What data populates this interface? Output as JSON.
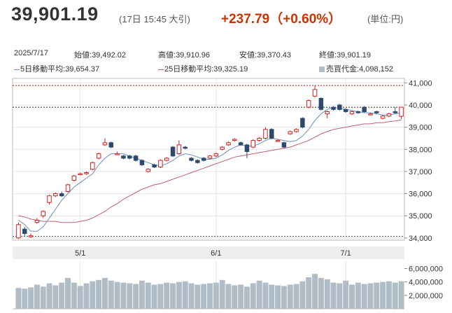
{
  "header": {
    "price": "39,901.19",
    "timestamp": "(17日 15:45 大引)",
    "change": "+237.79（+0.60%）",
    "unit": "(単位:円)"
  },
  "info": {
    "date": "2025/7/17",
    "open_label": "始値:",
    "open": "39,492.02",
    "high_label": "高値:",
    "high": "39,910.96",
    "low_label": "安値:",
    "low": "39,370.43",
    "close_label": "終値:",
    "close": "39,901.19",
    "ma5_label": "5日移動平均:",
    "ma5": "39,654.37",
    "ma25_label": "25日移動平均:",
    "ma25": "39,325.19",
    "volume_label": "売買代金:",
    "volume": "4,098,152"
  },
  "colors": {
    "up": "#cc2222",
    "down": "#2d4a6e",
    "ma5": "#6a8fc0",
    "ma25": "#c06070",
    "volume": "#b0bcc6",
    "dotted_high": "#9a2020",
    "dotted_low": "#3a4a6a"
  },
  "chart_data": {
    "type": "candlestick",
    "price_ticks": [
      "41,000",
      "40,000",
      "39,000",
      "38,000",
      "37,000",
      "36,000",
      "35,000",
      "34,000"
    ],
    "price_tick_values": [
      41000,
      40000,
      39000,
      38000,
      37000,
      36000,
      35000,
      34000
    ],
    "ylim": [
      33900,
      41200
    ],
    "x_labels": [
      "5/1",
      "6/1",
      "7/1"
    ],
    "x_label_positions": [
      10,
      32,
      53
    ],
    "current_price": 39901.19,
    "period_high_line": 40880,
    "period_low_line": 34070,
    "volume_ticks": [
      "6,000,000",
      "4,000,000",
      "2,000,000"
    ],
    "volume_tick_values": [
      6000000,
      4000000,
      2000000
    ],
    "candles": [
      [
        34000,
        34600,
        33950,
        34700
      ],
      [
        34400,
        34200,
        34100,
        34500
      ],
      [
        34080,
        34100,
        34000,
        34200
      ],
      [
        34700,
        34800,
        34650,
        34900
      ],
      [
        35000,
        35200,
        34900,
        35250
      ],
      [
        35600,
        35900,
        35500,
        35950
      ],
      [
        35900,
        36000,
        35850,
        36050
      ],
      [
        36000,
        35900,
        35850,
        36100
      ],
      [
        36100,
        36400,
        36050,
        36450
      ],
      [
        36600,
        36800,
        36550,
        36850
      ],
      [
        36900,
        36900,
        36850,
        36950
      ],
      [
        36900,
        36950,
        36850,
        37000
      ],
      [
        37100,
        37400,
        37050,
        37450
      ],
      [
        37600,
        37800,
        37550,
        37850
      ],
      [
        38200,
        38300,
        38150,
        38500
      ],
      [
        38300,
        38100,
        38050,
        38350
      ],
      [
        37800,
        37800,
        37750,
        37900
      ],
      [
        37700,
        37600,
        37550,
        37750
      ],
      [
        37700,
        37600,
        37550,
        37750
      ],
      [
        37700,
        37500,
        37450,
        37750
      ],
      [
        37500,
        37300,
        37250,
        37550
      ],
      [
        37000,
        37100,
        36950,
        37150
      ],
      [
        37300,
        37200,
        37150,
        37350
      ],
      [
        37200,
        37500,
        37150,
        37550
      ],
      [
        37500,
        37600,
        37450,
        37650
      ],
      [
        38100,
        37700,
        37650,
        38150
      ],
      [
        37800,
        38200,
        37750,
        38400
      ],
      [
        38100,
        38050,
        38000,
        38150
      ],
      [
        37600,
        37500,
        37450,
        37650
      ],
      [
        37500,
        37400,
        37350,
        37550
      ],
      [
        37600,
        37500,
        37450,
        37650
      ],
      [
        37600,
        37700,
        37550,
        37750
      ],
      [
        37700,
        37800,
        37650,
        37850
      ],
      [
        38000,
        38100,
        37950,
        38150
      ],
      [
        38200,
        38300,
        38150,
        38350
      ],
      [
        38400,
        38450,
        38350,
        38500
      ],
      [
        38300,
        38200,
        38150,
        38350
      ],
      [
        38200,
        37900,
        37600,
        38250
      ],
      [
        38100,
        38400,
        38050,
        38450
      ],
      [
        38400,
        38500,
        38350,
        38550
      ],
      [
        38500,
        38900,
        38450,
        39000
      ],
      [
        38900,
        38500,
        38450,
        38950
      ],
      [
        38400,
        38400,
        38350,
        38450
      ],
      [
        38300,
        38100,
        38050,
        38350
      ],
      [
        38700,
        38800,
        38650,
        38850
      ],
      [
        38800,
        38900,
        38750,
        38950
      ],
      [
        39400,
        39000,
        38950,
        39450
      ],
      [
        39900,
        40200,
        39850,
        40250
      ],
      [
        40400,
        40700,
        40350,
        40880
      ],
      [
        40300,
        39800,
        39750,
        40350
      ],
      [
        39600,
        39700,
        39400,
        39750
      ],
      [
        39900,
        39800,
        39750,
        39950
      ],
      [
        40000,
        39800,
        39750,
        40050
      ],
      [
        39800,
        39700,
        39650,
        39850
      ],
      [
        39600,
        39700,
        39550,
        39750
      ],
      [
        39700,
        39650,
        39600,
        39750
      ],
      [
        39900,
        39700,
        39650,
        39950
      ],
      [
        39600,
        39600,
        39550,
        39650
      ],
      [
        39700,
        39650,
        39600,
        39750
      ],
      [
        39400,
        39500,
        39350,
        39550
      ],
      [
        39500,
        39600,
        39450,
        39650
      ],
      [
        39700,
        39650,
        39600,
        39900
      ],
      [
        39492,
        39901,
        39370,
        39911
      ]
    ],
    "ma5": [
      34800,
      34600,
      34300,
      34300,
      34500,
      34900,
      35300,
      35700,
      36000,
      36300,
      36500,
      36700,
      36900,
      37300,
      37600,
      37800,
      37800,
      37800,
      37700,
      37600,
      37500,
      37400,
      37300,
      37250,
      37350,
      37500,
      37700,
      37800,
      37750,
      37650,
      37550,
      37550,
      37600,
      37750,
      37950,
      38100,
      38200,
      38150,
      38150,
      38250,
      38400,
      38500,
      38450,
      38400,
      38350,
      38400,
      38600,
      38900,
      39300,
      39600,
      39800,
      39900,
      39850,
      39800,
      39750,
      39700,
      39650,
      39650,
      39600,
      39550,
      39550,
      39600,
      39654
    ],
    "ma25": [
      35000,
      34950,
      34850,
      34800,
      34750,
      34750,
      34750,
      34700,
      34700,
      34700,
      34750,
      34800,
      34900,
      35050,
      35200,
      35400,
      35550,
      35750,
      35900,
      36050,
      36200,
      36300,
      36400,
      36450,
      36550,
      36650,
      36750,
      36850,
      36950,
      37050,
      37150,
      37250,
      37350,
      37450,
      37550,
      37650,
      37700,
      37750,
      37800,
      37850,
      37900,
      37950,
      38000,
      38050,
      38100,
      38200,
      38300,
      38400,
      38550,
      38700,
      38800,
      38900,
      38950,
      39000,
      39050,
      39100,
      39150,
      39150,
      39200,
      39200,
      39250,
      39280,
      39325
    ],
    "volumes": [
      3.1,
      3.0,
      3.2,
      3.6,
      3.3,
      3.8,
      3.5,
      3.9,
      4.6,
      3.9,
      3.4,
      3.8,
      4.1,
      4.3,
      4.6,
      4.2,
      4.0,
      3.9,
      3.8,
      3.7,
      4.2,
      3.9,
      3.6,
      3.7,
      3.9,
      3.8,
      4.0,
      4.1,
      3.8,
      3.6,
      3.7,
      3.8,
      3.9,
      4.3,
      3.7,
      3.5,
      3.6,
      3.3,
      3.8,
      4.2,
      3.9,
      3.6,
      3.5,
      3.4,
      3.6,
      3.7,
      4.1,
      4.7,
      5.2,
      4.6,
      4.4,
      3.9,
      3.8,
      4.2,
      3.6,
      3.9,
      3.7,
      3.8,
      3.9,
      4.0,
      4.1,
      3.9,
      4.1
    ]
  }
}
